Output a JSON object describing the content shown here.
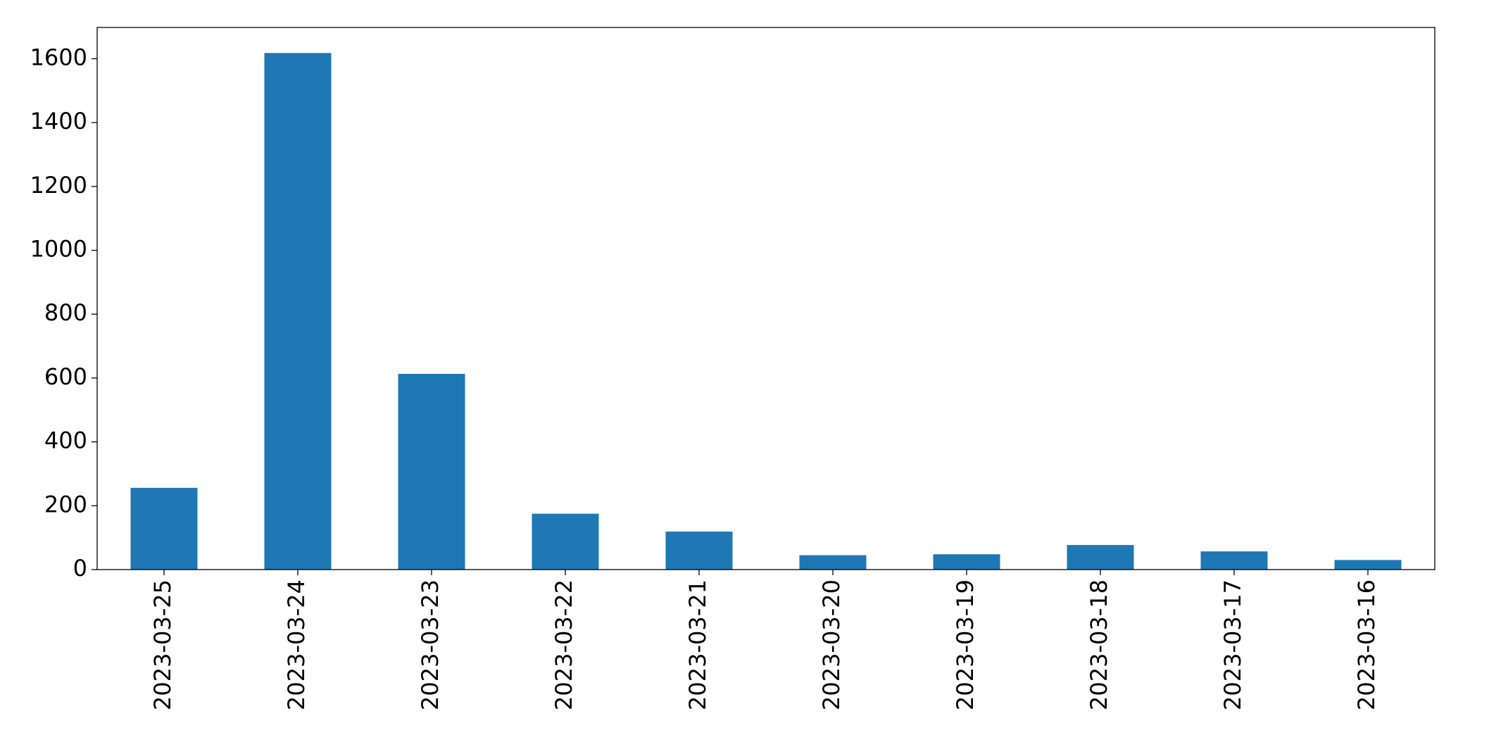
{
  "chart_data": {
    "type": "bar",
    "categories": [
      "2023-03-25",
      "2023-03-24",
      "2023-03-23",
      "2023-03-22",
      "2023-03-21",
      "2023-03-20",
      "2023-03-19",
      "2023-03-18",
      "2023-03-17",
      "2023-03-16"
    ],
    "values": [
      256,
      1618,
      613,
      175,
      119,
      45,
      48,
      77,
      57,
      30
    ],
    "color": "#1f77b4",
    "ylim": [
      0,
      1698
    ],
    "yticks": [
      0,
      200,
      400,
      600,
      800,
      1000,
      1200,
      1400,
      1600
    ],
    "grid": false
  }
}
